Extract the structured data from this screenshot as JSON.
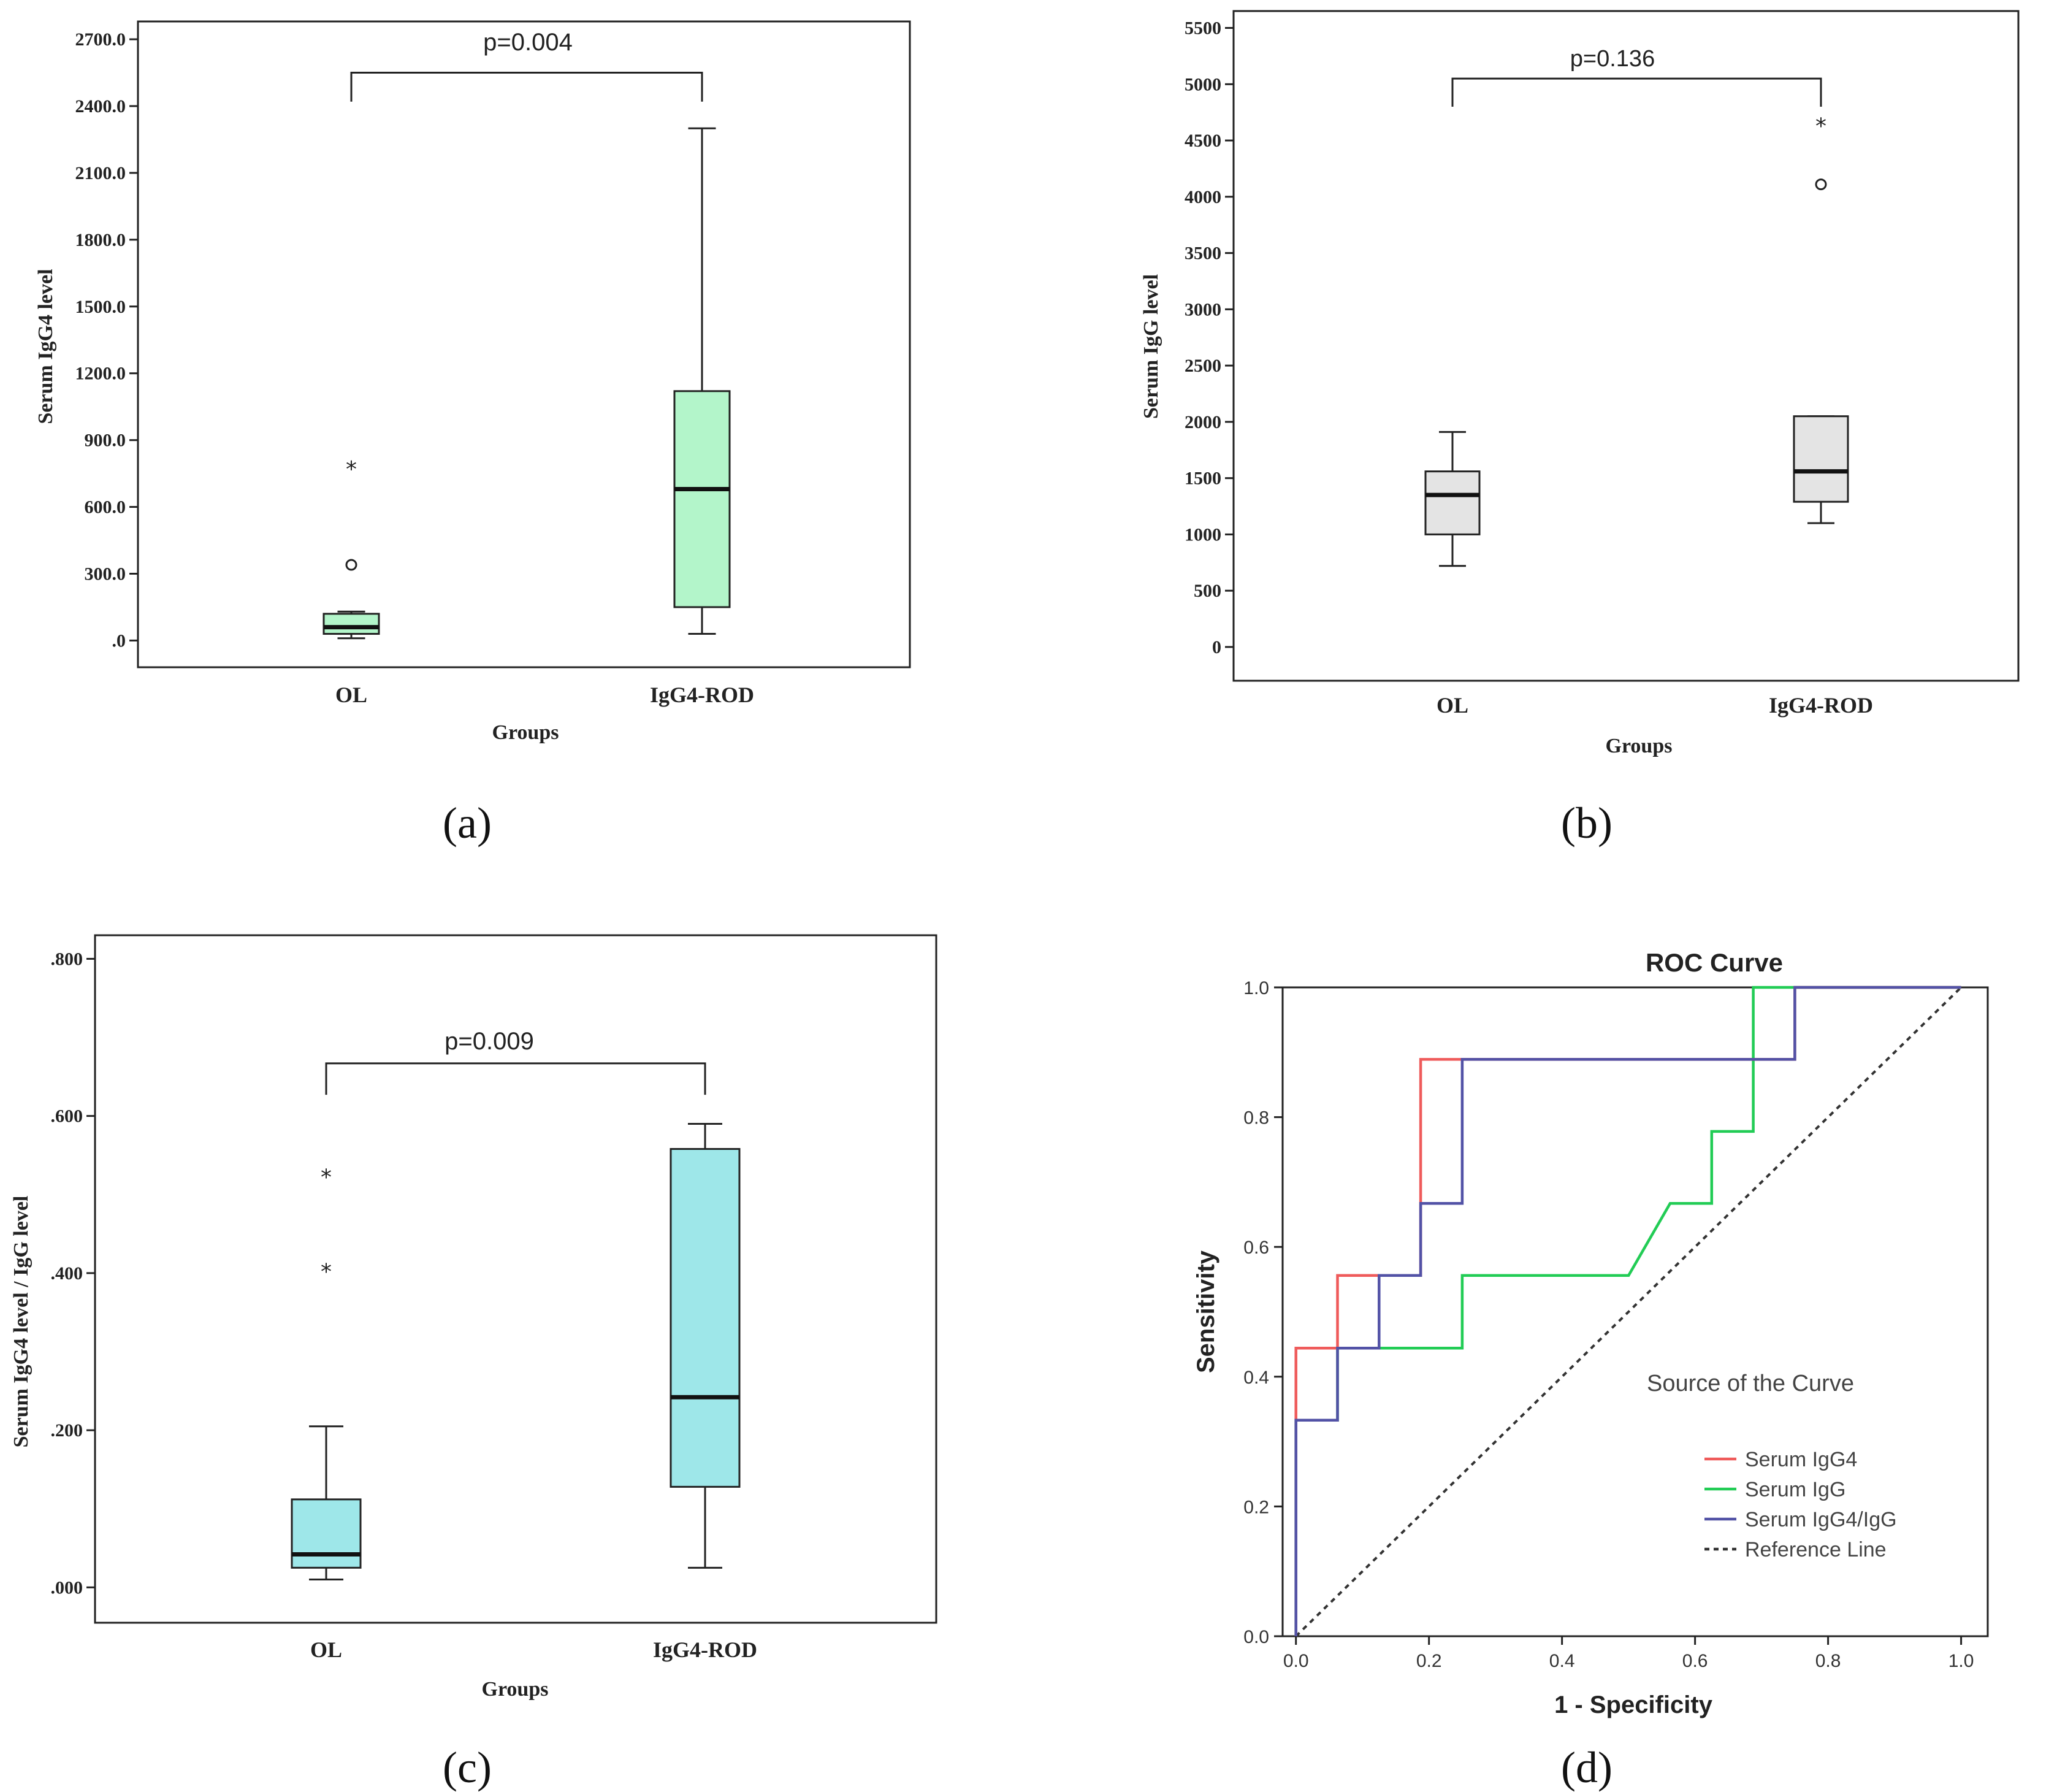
{
  "panel_labels": [
    "(a)",
    "(b)",
    "(c)",
    "(d)"
  ],
  "chart_data": [
    {
      "panel": "(a)",
      "type": "box",
      "title": "",
      "xlabel": "Groups",
      "ylabel": "Serum IgG4 level",
      "categories": [
        "OL",
        "IgG4-ROD"
      ],
      "ylim": [
        -120,
        2780
      ],
      "yticks": [
        0,
        300,
        600,
        900,
        1200,
        1500,
        1800,
        2100,
        2400,
        2700
      ],
      "ytick_labels": [
        ".0",
        "300.0",
        "600.0",
        "900.0",
        "1200.0",
        "1500.0",
        "1800.0",
        "2100.0",
        "2400.0",
        "2700.0"
      ],
      "fill": "#b3f5ca",
      "boxes": [
        {
          "group": "OL",
          "whisker_low": 10,
          "q1": 30,
          "median": 60,
          "q3": 120,
          "whisker_high": 130,
          "outliers": [
            {
              "value": 340,
              "marker": "circle"
            },
            {
              "value": 780,
              "marker": "star"
            }
          ]
        },
        {
          "group": "IgG4-ROD",
          "whisker_low": 30,
          "q1": 150,
          "median": 680,
          "q3": 1120,
          "whisker_high": 2300,
          "outliers": []
        }
      ],
      "annotation": {
        "text": "p=0.004",
        "bracket_value": 2550,
        "leg_value": 2420
      }
    },
    {
      "panel": "(b)",
      "type": "box",
      "title": "",
      "xlabel": "Groups",
      "ylabel": "Serum IgG level",
      "categories": [
        "OL",
        "IgG4-ROD"
      ],
      "ylim": [
        -300,
        5650
      ],
      "yticks": [
        0,
        500,
        1000,
        1500,
        2000,
        2500,
        3000,
        3500,
        4000,
        4500,
        5000,
        5500
      ],
      "ytick_labels": [
        "0",
        "500",
        "1000",
        "1500",
        "2000",
        "2500",
        "3000",
        "3500",
        "4000",
        "4500",
        "5000",
        "5500"
      ],
      "fill": "#e4e4e4",
      "boxes": [
        {
          "group": "OL",
          "whisker_low": 720,
          "q1": 1000,
          "median": 1350,
          "q3": 1560,
          "whisker_high": 1910,
          "outliers": []
        },
        {
          "group": "IgG4-ROD",
          "whisker_low": 1100,
          "q1": 1290,
          "median": 1560,
          "q3": 2050,
          "whisker_high": 2050,
          "outliers": [
            {
              "value": 4110,
              "marker": "circle"
            },
            {
              "value": 4650,
              "marker": "star"
            }
          ]
        }
      ],
      "annotation": {
        "text": "p=0.136",
        "bracket_value": 5050,
        "leg_value": 4800
      }
    },
    {
      "panel": "(c)",
      "type": "box",
      "title": "",
      "xlabel": "Groups",
      "ylabel": "Serum IgG4 level / IgG level",
      "categories": [
        "OL",
        "IgG4-ROD"
      ],
      "ylim": [
        -0.045,
        0.83
      ],
      "yticks": [
        0,
        0.2,
        0.4,
        0.6,
        0.8
      ],
      "ytick_labels": [
        ".000",
        ".200",
        ".400",
        ".600",
        ".800"
      ],
      "fill": "#9ee7e9",
      "boxes": [
        {
          "group": "OL",
          "whisker_low": 0.01,
          "q1": 0.025,
          "median": 0.042,
          "q3": 0.112,
          "whisker_high": 0.205,
          "outliers": [
            {
              "value": 0.405,
              "marker": "star"
            },
            {
              "value": 0.525,
              "marker": "star"
            }
          ]
        },
        {
          "group": "IgG4-ROD",
          "whisker_low": 0.025,
          "q1": 0.128,
          "median": 0.242,
          "q3": 0.558,
          "whisker_high": 0.59,
          "outliers": []
        }
      ],
      "annotation": {
        "text": "p=0.009",
        "bracket_value": 0.667,
        "leg_value": 0.627
      }
    },
    {
      "panel": "(d)",
      "type": "line",
      "title": "ROC Curve",
      "xlabel": "1 - Specificity",
      "ylabel": "Sensitivity",
      "xlim": [
        -0.02,
        1.04
      ],
      "ylim": [
        0,
        1
      ],
      "xticks": [
        0,
        0.2,
        0.4,
        0.6,
        0.8,
        1.0
      ],
      "xtick_labels": [
        "0.0",
        "0.2",
        "0.4",
        "0.6",
        "0.8",
        "1.0"
      ],
      "yticks": [
        0,
        0.2,
        0.4,
        0.6,
        0.8,
        1.0
      ],
      "ytick_labels": [
        "0.0",
        "0.2",
        "0.4",
        "0.6",
        "0.8",
        "1.0"
      ],
      "legend_title": "Source of the Curve",
      "series": [
        {
          "name": "Serum IgG4",
          "color": "#ef5b5b",
          "dash": false,
          "points": [
            [
              0,
              0
            ],
            [
              0,
              0.444
            ],
            [
              0.0625,
              0.444
            ],
            [
              0.0625,
              0.556
            ],
            [
              0.1875,
              0.556
            ],
            [
              0.1875,
              0.889
            ],
            [
              0.75,
              0.889
            ],
            [
              0.75,
              1
            ],
            [
              1,
              1
            ]
          ]
        },
        {
          "name": "Serum IgG",
          "color": "#22cc55",
          "dash": false,
          "points": [
            [
              0,
              0
            ],
            [
              0,
              0.333
            ],
            [
              0.0625,
              0.333
            ],
            [
              0.0625,
              0.444
            ],
            [
              0.25,
              0.444
            ],
            [
              0.25,
              0.556
            ],
            [
              0.5,
              0.556
            ],
            [
              0.5625,
              0.667
            ],
            [
              0.625,
              0.667
            ],
            [
              0.625,
              0.778
            ],
            [
              0.6875,
              0.778
            ],
            [
              0.6875,
              1
            ],
            [
              1,
              1
            ]
          ]
        },
        {
          "name": "Serum IgG4/IgG",
          "color": "#5252a6",
          "dash": false,
          "points": [
            [
              0,
              0
            ],
            [
              0,
              0.333
            ],
            [
              0.0625,
              0.333
            ],
            [
              0.0625,
              0.444
            ],
            [
              0.125,
              0.444
            ],
            [
              0.125,
              0.556
            ],
            [
              0.1875,
              0.556
            ],
            [
              0.1875,
              0.667
            ],
            [
              0.25,
              0.667
            ],
            [
              0.25,
              0.889
            ],
            [
              0.75,
              0.889
            ],
            [
              0.75,
              1
            ],
            [
              1,
              1
            ]
          ]
        },
        {
          "name": "Reference Line",
          "color": "#333333",
          "dash": true,
          "points": [
            [
              0,
              0
            ],
            [
              1,
              1
            ]
          ]
        }
      ]
    }
  ]
}
